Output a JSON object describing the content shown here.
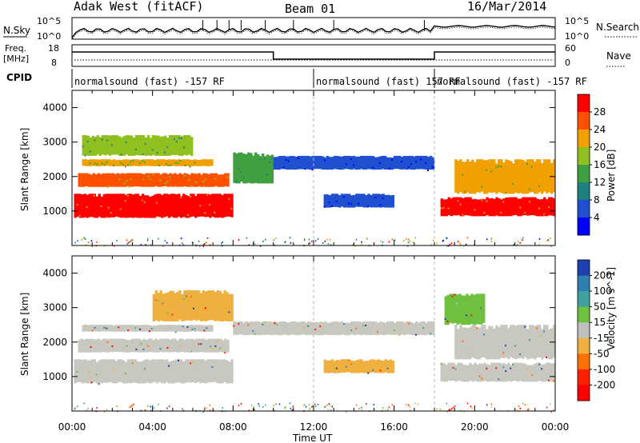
{
  "header": {
    "station": "Adak West (fitACF)",
    "beam": "Beam 01",
    "date": "16/Mar/2014"
  },
  "noise_panel": {
    "left_label": "N.Sky",
    "right_label": "N.Search",
    "left_ticks": [
      "10^5",
      "10^0"
    ],
    "right_ticks": [
      "10^5",
      "10^0"
    ]
  },
  "freq_panel": {
    "left_label_1": "Freq.",
    "left_label_2": "[MHz]",
    "right_label": "Nave",
    "left_ticks": [
      "18",
      "8"
    ],
    "right_ticks": [
      "60",
      "0"
    ]
  },
  "cpid": {
    "label": "CPID",
    "segments": [
      {
        "text": "normalsound (fast) -157 RF",
        "start_hour": 0,
        "end_hour": 12
      },
      {
        "text": "normalsound (fast) 157 RF",
        "start_hour": 12,
        "end_hour": 18
      },
      {
        "text": "normalsound (fast) -157 RF",
        "start_hour": 18,
        "end_hour": 24
      }
    ]
  },
  "x_axis": {
    "title": "Time UT",
    "ticks": [
      "00:00",
      "04:00",
      "08:00",
      "12:00",
      "16:00",
      "20:00",
      "00:00"
    ]
  },
  "chart_data": [
    {
      "type": "heatmap",
      "panel": "power",
      "ylabel": "Slant Range [km]",
      "ylim": [
        0,
        4500
      ],
      "yticks": [
        1000,
        2000,
        3000,
        4000
      ],
      "xlim": [
        0,
        24
      ],
      "colorbar_label": "Power [dB]",
      "colorbar_ticks": [
        "28",
        "24",
        "20",
        "16",
        "12",
        "8",
        "4"
      ],
      "colorscale": [
        "#0000ff",
        "#2050d0",
        "#1f8080",
        "#40a040",
        "#90c020",
        "#f0a000",
        "#ff5000",
        "#ff0000"
      ],
      "regions": [
        {
          "start_hour": 0.1,
          "end_hour": 8.0,
          "range_km": [
            800,
            1500
          ],
          "value_db": 28
        },
        {
          "start_hour": 0.3,
          "end_hour": 7.8,
          "range_km": [
            1700,
            2100
          ],
          "value_db": 26
        },
        {
          "start_hour": 0.5,
          "end_hour": 7.0,
          "range_km": [
            2300,
            2500
          ],
          "value_db": 22
        },
        {
          "start_hour": 0.5,
          "end_hour": 6.0,
          "range_km": [
            2600,
            3200
          ],
          "value_db": 18
        },
        {
          "start_hour": 8.0,
          "end_hour": 10.0,
          "range_km": [
            1800,
            2700
          ],
          "value_db": 14
        },
        {
          "start_hour": 10.0,
          "end_hour": 18.0,
          "range_km": [
            2200,
            2600
          ],
          "value_db": 6
        },
        {
          "start_hour": 12.5,
          "end_hour": 16.0,
          "range_km": [
            1100,
            1500
          ],
          "value_db": 5
        },
        {
          "start_hour": 18.3,
          "end_hour": 24.0,
          "range_km": [
            850,
            1400
          ],
          "value_db": 28
        },
        {
          "start_hour": 19.0,
          "end_hour": 24.0,
          "range_km": [
            1500,
            2500
          ],
          "value_db": 22
        }
      ]
    },
    {
      "type": "heatmap",
      "panel": "velocity",
      "ylabel": "Slant Range [km]",
      "ylim": [
        0,
        4500
      ],
      "yticks": [
        1000,
        2000,
        3000,
        4000
      ],
      "xlim": [
        0,
        24
      ],
      "colorbar_label": "Velocity [m s^-1]",
      "colorbar_ticks": [
        "200",
        "100",
        "50",
        "15",
        "-15",
        "-50",
        "-100",
        "-200"
      ],
      "colorscale": [
        "#1f3fb0",
        "#2f7fb0",
        "#40a0a0",
        "#70c040",
        "#c0c0c0",
        "#f0b040",
        "#ff7000",
        "#ff2000",
        "#ff0000"
      ],
      "regions": [
        {
          "start_hour": 0.1,
          "end_hour": 8.0,
          "range_km": [
            800,
            1500
          ],
          "value_ms": 0
        },
        {
          "start_hour": 0.3,
          "end_hour": 7.8,
          "range_km": [
            1700,
            2100
          ],
          "value_ms": 0
        },
        {
          "start_hour": 0.5,
          "end_hour": 7.0,
          "range_km": [
            2300,
            2500
          ],
          "value_ms": 0
        },
        {
          "start_hour": 4.0,
          "end_hour": 8.0,
          "range_km": [
            2600,
            3500
          ],
          "value_ms": -40
        },
        {
          "start_hour": 8.0,
          "end_hour": 18.0,
          "range_km": [
            2200,
            2600
          ],
          "value_ms": 0
        },
        {
          "start_hour": 12.5,
          "end_hour": 16.0,
          "range_km": [
            1100,
            1500
          ],
          "value_ms": -30
        },
        {
          "start_hour": 18.3,
          "end_hour": 24.0,
          "range_km": [
            850,
            1400
          ],
          "value_ms": 0
        },
        {
          "start_hour": 19.0,
          "end_hour": 24.0,
          "range_km": [
            1500,
            2500
          ],
          "value_ms": 0
        },
        {
          "start_hour": 18.5,
          "end_hour": 20.5,
          "range_km": [
            2500,
            3400
          ],
          "value_ms": 60
        }
      ]
    }
  ]
}
